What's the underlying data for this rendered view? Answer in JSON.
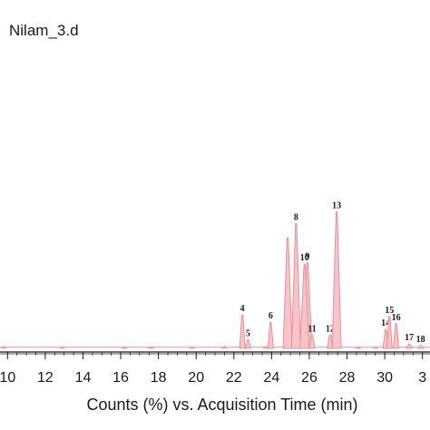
{
  "chart_data": {
    "type": "line",
    "title": "Nilam_3.d",
    "xlabel": "Counts (%) vs. Acquisition Time (min)",
    "ylabel": "",
    "xlim": [
      9.6,
      32.4
    ],
    "ylim": [
      0,
      100
    ],
    "x_ticks": [
      "10",
      "12",
      "14",
      "16",
      "18",
      "20",
      "22",
      "24",
      "26",
      "28",
      "30",
      "3"
    ],
    "grid": false,
    "line_color": "#e8909a",
    "fill_color": "#f7c5c9",
    "peaks": [
      {
        "label": "4",
        "x": 22.45,
        "y": 23.0
      },
      {
        "label": "5",
        "x": 22.75,
        "y": 6.0
      },
      {
        "label": "6",
        "x": 23.95,
        "y": 18.0
      },
      {
        "label": "",
        "x": 24.85,
        "y": 76.0
      },
      {
        "label": "8",
        "x": 25.3,
        "y": 86.0
      },
      {
        "label": "9",
        "x": 25.9,
        "y": 59.0
      },
      {
        "label": "10",
        "x": 25.75,
        "y": 58.0
      },
      {
        "label": "11",
        "x": 26.15,
        "y": 9.0
      },
      {
        "label": "12",
        "x": 27.1,
        "y": 9.0
      },
      {
        "label": "13",
        "x": 27.45,
        "y": 94.0
      },
      {
        "label": "14",
        "x": 30.05,
        "y": 13.0
      },
      {
        "label": "15",
        "x": 30.25,
        "y": 22.0
      },
      {
        "label": "16",
        "x": 30.6,
        "y": 17.0
      },
      {
        "label": "17",
        "x": 31.3,
        "y": 3.0
      },
      {
        "label": "18",
        "x": 31.9,
        "y": 2.0
      }
    ],
    "minor_peaks": [
      {
        "x": 9.8,
        "y": 1.6
      },
      {
        "x": 12.9,
        "y": 1.4
      },
      {
        "x": 16.2,
        "y": 1.0
      },
      {
        "x": 17.6,
        "y": 1.1
      },
      {
        "x": 19.8,
        "y": 1.2
      },
      {
        "x": 21.5,
        "y": 1.6
      },
      {
        "x": 23.7,
        "y": 1.5
      },
      {
        "x": 28.6,
        "y": 1.0
      },
      {
        "x": 29.5,
        "y": 1.2
      }
    ]
  }
}
